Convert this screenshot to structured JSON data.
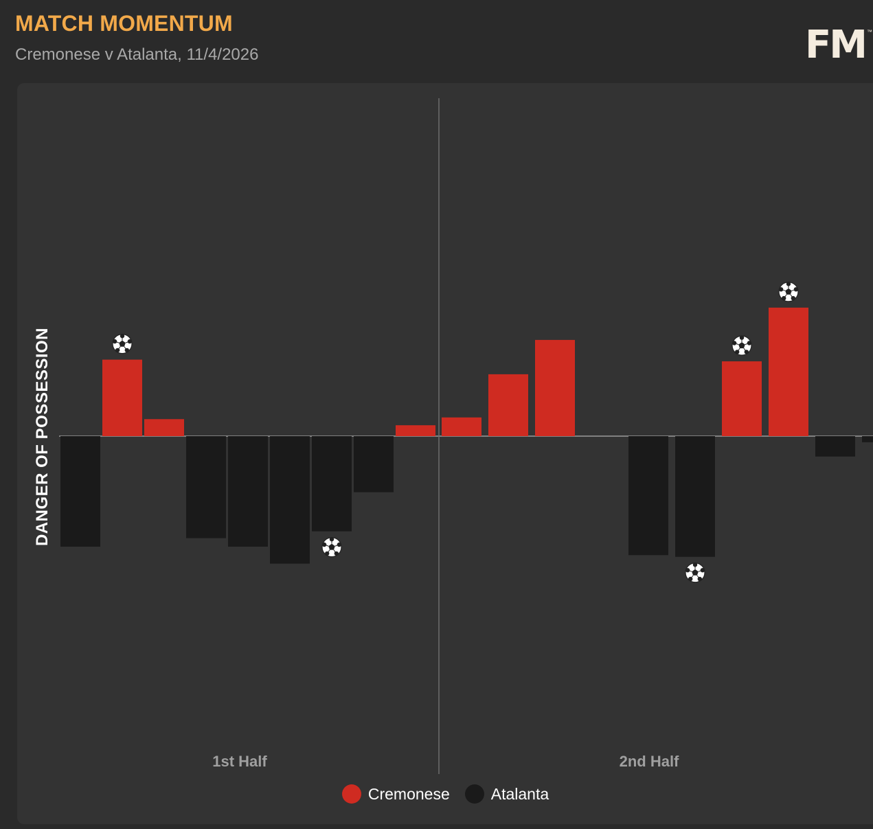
{
  "header": {
    "title": "MATCH MOMENTUM",
    "subtitle": "Cremonese v Atalanta, 11/4/2026",
    "logo_text": "FM",
    "logo_tm": "™"
  },
  "colors": {
    "home": "#cf2b21",
    "away": "#1a1a1a",
    "title": "#f2a94a",
    "panel": "#333333"
  },
  "icons": {
    "goal": "soccer-ball-icon"
  },
  "chart_data": {
    "type": "bar",
    "ylabel": "DANGER OF POSSESSION",
    "ylim": [
      -1,
      1
    ],
    "series": [
      {
        "name": "Cremonese",
        "color": "#cf2b21"
      },
      {
        "name": "Atalanta",
        "color": "#1a1a1a"
      }
    ],
    "halves": [
      {
        "label": "1st Half",
        "bars": [
          {
            "value": -0.325,
            "goal": false
          },
          {
            "value": 0.225,
            "goal": true
          },
          {
            "value": 0.05,
            "goal": false
          },
          {
            "value": -0.3,
            "goal": false
          },
          {
            "value": -0.325,
            "goal": false
          },
          {
            "value": -0.375,
            "goal": false
          },
          {
            "value": -0.28,
            "goal": true
          },
          {
            "value": -0.165,
            "goal": false
          },
          {
            "value": 0.032,
            "goal": false
          }
        ]
      },
      {
        "label": "2nd Half",
        "bars": [
          {
            "value": 0.055,
            "goal": false
          },
          {
            "value": 0.182,
            "goal": false
          },
          {
            "value": 0.283,
            "goal": false
          },
          {
            "value": 0,
            "goal": false
          },
          {
            "value": -0.35,
            "goal": false
          },
          {
            "value": -0.355,
            "goal": true
          },
          {
            "value": 0.22,
            "goal": true
          },
          {
            "value": 0.378,
            "goal": true
          },
          {
            "value": -0.06,
            "goal": false
          },
          {
            "value": -0.018,
            "goal": false
          }
        ]
      }
    ],
    "legend": [
      {
        "name": "Cremonese",
        "color": "#cf2b21"
      },
      {
        "name": "Atalanta",
        "color": "#1a1a1a"
      }
    ],
    "legend_position": "bottom-center",
    "grid": false
  }
}
